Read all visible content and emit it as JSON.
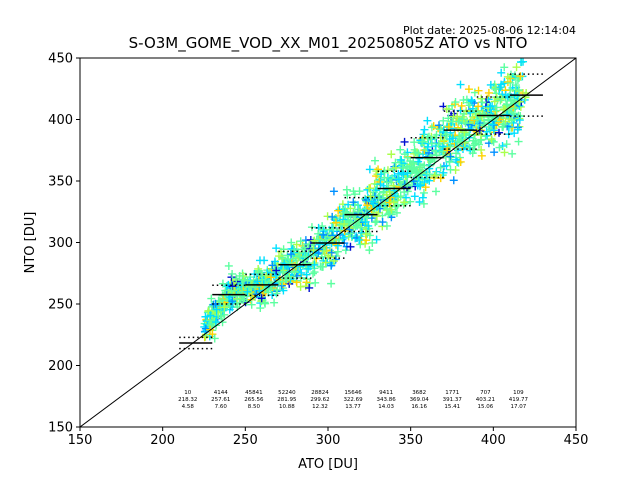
{
  "plot_date": "Plot date: 2025-08-06 12:14:04",
  "chart_data": {
    "type": "scatter",
    "title": "S-O3M_GOME_VOD_XX_M01_20250805Z ATO vs NTO",
    "xlabel": "ATO [DU]",
    "ylabel": "NTO [DU]",
    "xlim": [
      150,
      450
    ],
    "ylim": [
      150,
      450
    ],
    "xticks": [
      150,
      200,
      250,
      300,
      350,
      400,
      450
    ],
    "yticks": [
      150,
      200,
      250,
      300,
      350,
      400,
      450
    ],
    "grid": false,
    "legend": "none",
    "identity_line": true,
    "colors": {
      "low": "#ffd200",
      "mid_low": "#aaff4c",
      "mid": "#5cffa0",
      "mid_high": "#00e0ff",
      "high": "#0090ff",
      "top": "#0010d0"
    },
    "bins": [
      {
        "x": 220,
        "count": "10",
        "mean": "218.32",
        "std": "4.58",
        "mean_val": 218.32,
        "std_val": 4.58
      },
      {
        "x": 240,
        "count": "4144",
        "mean": "257.61",
        "std": "7.60",
        "mean_val": 257.61,
        "std_val": 7.6
      },
      {
        "x": 260,
        "count": "45841",
        "mean": "265.56",
        "std": "8.50",
        "mean_val": 265.56,
        "std_val": 8.5
      },
      {
        "x": 280,
        "count": "52240",
        "mean": "281.95",
        "std": "10.88",
        "mean_val": 281.95,
        "std_val": 10.88
      },
      {
        "x": 300,
        "count": "28824",
        "mean": "299.62",
        "std": "12.32",
        "mean_val": 299.62,
        "std_val": 12.32
      },
      {
        "x": 320,
        "count": "15646",
        "mean": "322.69",
        "std": "13.77",
        "mean_val": 322.69,
        "std_val": 13.77
      },
      {
        "x": 340,
        "count": "9411",
        "mean": "343.86",
        "std": "14.03",
        "mean_val": 343.86,
        "std_val": 14.03
      },
      {
        "x": 360,
        "count": "3682",
        "mean": "369.04",
        "std": "16.16",
        "mean_val": 369.04,
        "std_val": 16.16
      },
      {
        "x": 380,
        "count": "1771",
        "mean": "391.37",
        "std": "15.41",
        "mean_val": 391.37,
        "std_val": 15.41
      },
      {
        "x": 400,
        "count": "707",
        "mean": "403.21",
        "std": "15.06",
        "mean_val": 403.21,
        "std_val": 15.06
      },
      {
        "x": 420,
        "count": "109",
        "mean": "419.77",
        "std": "17.07",
        "mean_val": 419.77,
        "std_val": 17.07
      }
    ]
  }
}
